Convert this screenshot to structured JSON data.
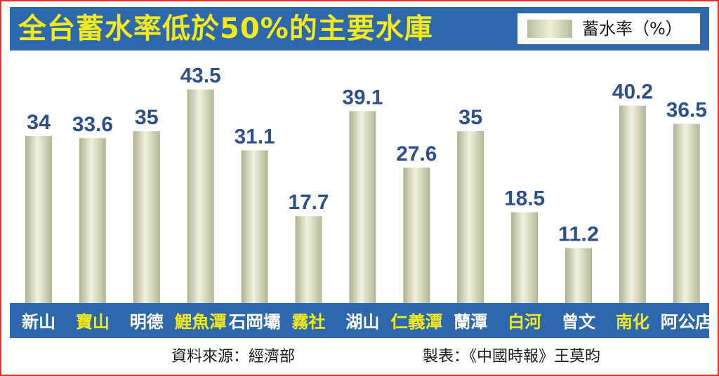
{
  "chart_data": {
    "type": "bar",
    "title": "全台蓄水率低於50%的主要水庫",
    "legend": "蓄水率（%）",
    "categories": [
      "新山",
      "寶山",
      "明德",
      "鯉魚潭",
      "石岡壩",
      "霧社",
      "湖山",
      "仁義潭",
      "蘭潭",
      "白河",
      "曾文",
      "南化",
      "阿公店"
    ],
    "values": [
      34,
      33.6,
      35,
      43.5,
      31.1,
      17.7,
      39.1,
      27.6,
      35,
      18.5,
      11.2,
      40.2,
      36.5
    ],
    "value_labels": [
      "34",
      "33.6",
      "35",
      "43.5",
      "31.1",
      "17.7",
      "39.1",
      "27.6",
      "35",
      "18.5",
      "11.2",
      "40.2",
      "36.5"
    ],
    "highlighted": [
      false,
      true,
      false,
      true,
      false,
      true,
      false,
      true,
      false,
      true,
      false,
      true,
      false
    ],
    "ylim": [
      0,
      50
    ],
    "grid": false
  },
  "footer": {
    "source": "資料來源：經濟部",
    "credit": "製表：《中國時報》王莫昀"
  },
  "colors": {
    "header_blue": "#2d68ad",
    "title_yellow": "#f4ea1b",
    "value_text": "#2c4f8e",
    "label_white": "#ffffff",
    "label_highlight": "#f4ea1b",
    "frame_red": "#e8302a"
  }
}
